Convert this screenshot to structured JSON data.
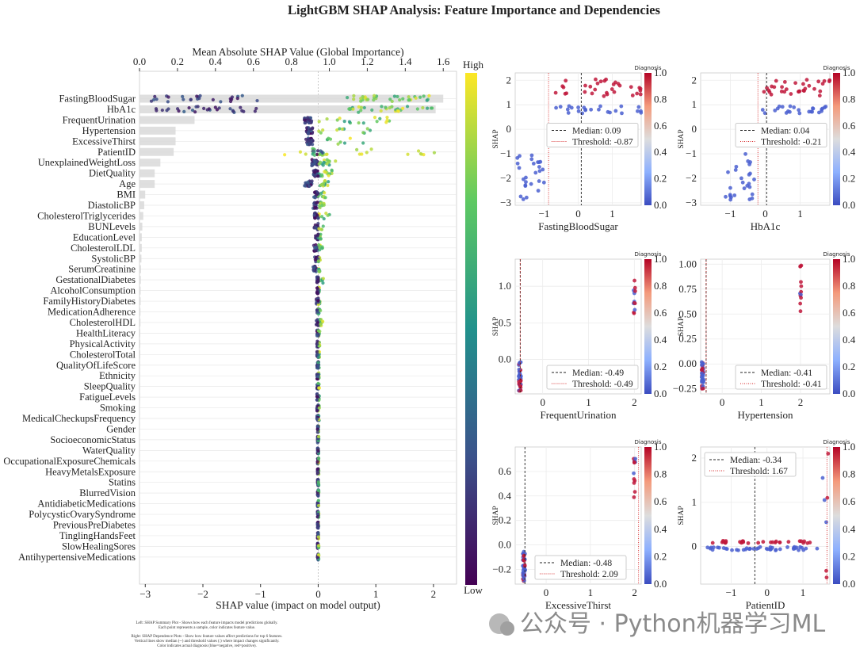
{
  "title": "LightGBM SHAP Analysis: Feature Importance and Dependencies",
  "footnote": {
    "left_line1": "Left: SHAP Summary Plot - Shows how each feature impacts model predictions globally.",
    "left_line2": "Each point represents a sample, color indicates feature value.",
    "right_line1": "Right: SHAP Dependence Plots - Show how feature values affect predictions for top 6 features.",
    "right_line2": "Vertical lines show median (--) and threshold values (:) where impact changes significantly.",
    "right_line3": "Color indicates actual diagnosis (blue=negative, red=positive)."
  },
  "watermark": "公众号 · Python机器学习ML",
  "colorbar_labels": {
    "high": "High",
    "low": "Low"
  },
  "chart_data": [
    {
      "type": "scatter",
      "name": "summary",
      "xlabel": "SHAP value (impact on model output)",
      "top_xlabel": "Mean Absolute SHAP Value (Global Importance)",
      "xlim": [
        -3.1,
        2.4
      ],
      "xticks": [
        -3,
        -2,
        -1,
        0,
        1,
        2
      ],
      "top_xlim": [
        0,
        1.67
      ],
      "top_xticks": [
        0.0,
        0.2,
        0.4,
        0.6,
        0.8,
        1.0,
        1.2,
        1.4,
        1.6
      ],
      "features": [
        "FastingBloodSugar",
        "HbA1c",
        "FrequentUrination",
        "Hypertension",
        "ExcessiveThirst",
        "PatientID",
        "UnexplainedWeightLoss",
        "DietQuality",
        "Age",
        "BMI",
        "DiastolicBP",
        "CholesterolTriglycerides",
        "BUNLevels",
        "EducationLevel",
        "CholesterolLDL",
        "SystolicBP",
        "SerumCreatinine",
        "GestationalDiabetes",
        "AlcoholConsumption",
        "FamilyHistoryDiabetes",
        "MedicationAdherence",
        "CholesterolHDL",
        "HealthLiteracy",
        "PhysicalActivity",
        "CholesterolTotal",
        "QualityOfLifeScore",
        "Ethnicity",
        "SleepQuality",
        "FatigueLevels",
        "Smoking",
        "MedicalCheckupsFrequency",
        "Gender",
        "SocioeconomicStatus",
        "WaterQuality",
        "OccupationalExposureChemicals",
        "HeavyMetalsExposure",
        "Statins",
        "BlurredVision",
        "AntidiabeticMedications",
        "PolycysticOvarySyndrome",
        "PreviousPreDiabetes",
        "TinglingHandsFeet",
        "SlowHealingSores",
        "AntihypertensiveMedications"
      ],
      "mean_abs_shap": [
        1.6,
        1.56,
        0.29,
        0.19,
        0.19,
        0.18,
        0.11,
        0.08,
        0.08,
        0.03,
        0.025,
        0.02,
        0.015,
        0.012,
        0.012,
        0.01,
        0.008,
        0.007,
        0.006,
        0.006,
        0.005,
        0.005,
        0.004,
        0.004,
        0.004,
        0.003,
        0.003,
        0.003,
        0.003,
        0.002,
        0.002,
        0.002,
        0.002,
        0.002,
        0.001,
        0.001,
        0.001,
        0.001,
        0.001,
        0.001,
        0.001,
        0.001,
        0.001,
        0.001
      ],
      "shap_ranges": [
        [
          -2.9,
          2.0
        ],
        [
          -2.9,
          2.0
        ],
        [
          -0.45,
          1.3
        ],
        [
          -0.35,
          1.0
        ],
        [
          -0.35,
          0.9
        ],
        [
          -0.75,
          2.15
        ],
        [
          -0.15,
          0.3
        ],
        [
          -0.1,
          0.25
        ],
        [
          -0.4,
          0.2
        ],
        [
          -0.1,
          0.15
        ],
        [
          -0.1,
          0.12
        ],
        [
          -0.08,
          0.2
        ],
        [
          -0.08,
          0.1
        ],
        [
          -0.05,
          0.05
        ],
        [
          -0.08,
          0.08
        ],
        [
          -0.06,
          0.08
        ],
        [
          -0.15,
          0.03
        ],
        [
          -0.02,
          0.1
        ],
        [
          -0.02,
          0.02
        ],
        [
          -0.03,
          0.03
        ],
        [
          -0.02,
          0.04
        ],
        [
          -0.03,
          0.08
        ],
        [
          -0.02,
          0.03
        ],
        [
          -0.02,
          0.03
        ],
        [
          -0.02,
          0.02
        ],
        [
          -0.02,
          0.02
        ],
        [
          -0.02,
          0.02
        ],
        [
          -0.02,
          0.02
        ],
        [
          -0.02,
          0.02
        ],
        [
          -0.02,
          0.02
        ],
        [
          -0.02,
          0.02
        ],
        [
          -0.01,
          0.01
        ],
        [
          -0.01,
          0.01
        ],
        [
          -0.01,
          0.01
        ],
        [
          -0.01,
          0.01
        ],
        [
          -0.01,
          0.01
        ],
        [
          -0.01,
          0.01
        ],
        [
          -0.01,
          0.01
        ],
        [
          -0.01,
          0.01
        ],
        [
          -0.01,
          0.01
        ],
        [
          -0.01,
          0.01
        ],
        [
          -0.01,
          0.01
        ],
        [
          -0.01,
          0.01
        ],
        [
          -0.01,
          0.01
        ]
      ],
      "colormap": "viridis"
    },
    {
      "type": "scatter",
      "name": "FastingBloodSugar",
      "xlabel": "FastingBloodSugar",
      "ylabel": "SHAP",
      "xlim": [
        -1.85,
        1.85
      ],
      "ylim": [
        -3.1,
        2.3
      ],
      "xticks": [
        -1,
        0,
        1
      ],
      "yticks": [
        -3,
        -2,
        -1,
        0,
        1,
        2
      ],
      "median": 0.09,
      "threshold": -0.87,
      "legend": [
        "Median: 0.09",
        "Threshold: -0.87"
      ],
      "legend_pos": "center-right",
      "colorbar_label": "Diagnosis",
      "colorbar_ticks": [
        0.0,
        0.2,
        0.4,
        0.6,
        0.8,
        1.0
      ]
    },
    {
      "type": "scatter",
      "name": "HbA1c",
      "xlabel": "HbA1c",
      "ylabel": "SHAP",
      "xlim": [
        -1.85,
        1.85
      ],
      "ylim": [
        -3.1,
        2.3
      ],
      "xticks": [
        -1,
        0,
        1
      ],
      "yticks": [
        -3,
        -2,
        -1,
        0,
        1,
        2
      ],
      "median": 0.04,
      "threshold": -0.21,
      "legend": [
        "Median: 0.04",
        "Threshold: -0.21"
      ],
      "legend_pos": "center-right",
      "colorbar_label": "Diagnosis",
      "colorbar_ticks": [
        0.0,
        0.2,
        0.4,
        0.6,
        0.8,
        1.0
      ]
    },
    {
      "type": "scatter",
      "name": "FrequentUrination",
      "xlabel": "FrequentUrination",
      "ylabel": "SHAP",
      "xlim": [
        -0.6,
        2.15
      ],
      "ylim": [
        -0.47,
        1.37
      ],
      "xticks": [
        0,
        1,
        2
      ],
      "yticks": [
        0.0,
        0.5,
        1.0
      ],
      "median": -0.49,
      "threshold": -0.49,
      "legend": [
        "Median: -0.49",
        "Threshold: -0.49"
      ],
      "legend_pos": "lower-right",
      "colorbar_label": "Diagnosis",
      "colorbar_ticks": [
        0.0,
        0.2,
        0.4,
        0.6,
        0.8,
        1.0
      ]
    },
    {
      "type": "scatter",
      "name": "Hypertension",
      "xlabel": "Hypertension",
      "ylabel": "SHAP",
      "xlim": [
        -0.55,
        2.75
      ],
      "ylim": [
        -0.3,
        1.05
      ],
      "xticks": [
        0,
        1,
        2
      ],
      "yticks": [
        -0.25,
        0.0,
        0.25,
        0.5,
        0.75,
        1.0
      ],
      "median": -0.41,
      "threshold": -0.41,
      "legend": [
        "Median: -0.41",
        "Threshold: -0.41"
      ],
      "legend_pos": "lower-right",
      "colorbar_label": "Diagnosis",
      "colorbar_ticks": [
        0.0,
        0.2,
        0.4,
        0.6,
        0.8,
        1.0
      ]
    },
    {
      "type": "scatter",
      "name": "ExcessiveThirst",
      "xlabel": "ExcessiveThirst",
      "ylabel": "SHAP",
      "xlim": [
        -0.7,
        2.15
      ],
      "ylim": [
        -0.32,
        0.8
      ],
      "xticks": [
        0,
        1,
        2
      ],
      "yticks": [
        -0.2,
        0.0,
        0.2,
        0.4,
        0.6
      ],
      "median": -0.48,
      "threshold": 2.09,
      "legend": [
        "Median: -0.48",
        "Threshold: 2.09"
      ],
      "legend_pos": "lower-center",
      "colorbar_label": "Diagnosis",
      "colorbar_ticks": [
        0.0,
        0.2,
        0.4,
        0.6,
        0.8,
        1.0
      ]
    },
    {
      "type": "scatter",
      "name": "PatientID",
      "xlabel": "PatientID",
      "ylabel": "SHAP",
      "xlim": [
        -1.85,
        1.75
      ],
      "ylim": [
        -0.85,
        2.25
      ],
      "xticks": [
        -1,
        0,
        1
      ],
      "yticks": [
        0,
        1,
        2
      ],
      "median": -0.34,
      "threshold": 1.67,
      "legend": [
        "Median: -0.34",
        "Threshold: 1.67"
      ],
      "legend_pos": "upper-left",
      "colorbar_label": "Diagnosis",
      "colorbar_ticks": [
        0.0,
        0.2,
        0.4,
        0.6,
        0.8,
        1.0
      ]
    }
  ]
}
